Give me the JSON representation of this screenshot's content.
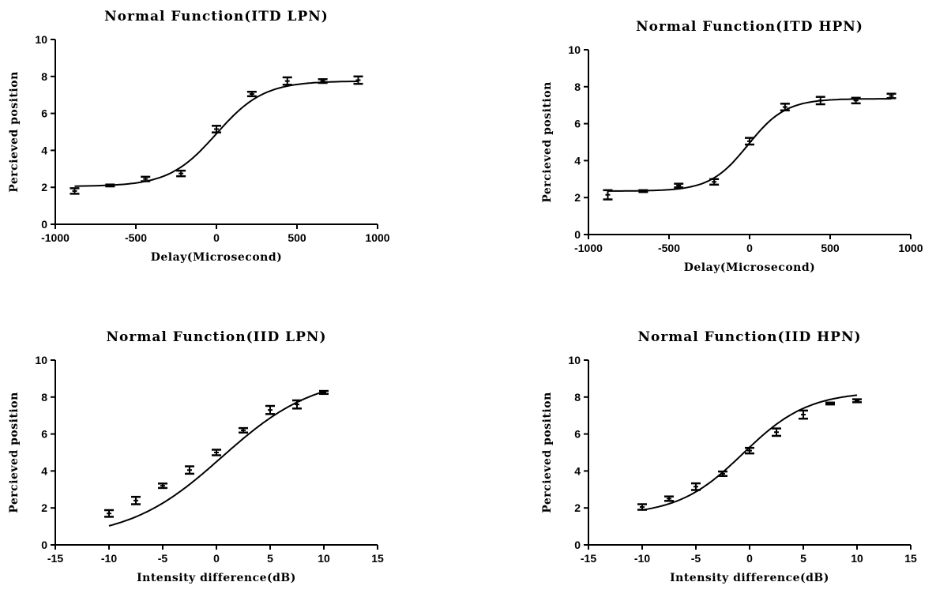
{
  "chart_data": [
    {
      "type": "scatter",
      "title": "Normal Function(ITD LPN)",
      "xlabel": "Delay(Microsecond)",
      "ylabel": "Percieved position",
      "xlim": [
        -1000,
        1000
      ],
      "ylim": [
        0,
        10
      ],
      "xticks": [
        -1000,
        -500,
        0,
        500,
        1000
      ],
      "yticks": [
        0,
        2,
        4,
        6,
        8,
        10
      ],
      "fit": {
        "bottom": 2.05,
        "top": 7.75,
        "center": 0,
        "slope": 0.0068
      },
      "x": [
        -880,
        -660,
        -440,
        -220,
        0,
        220,
        440,
        660,
        880
      ],
      "y": [
        1.8,
        2.1,
        2.45,
        2.75,
        5.15,
        7.05,
        7.75,
        7.75,
        7.8
      ],
      "err": [
        0.15,
        0.05,
        0.12,
        0.15,
        0.18,
        0.12,
        0.2,
        0.1,
        0.2
      ]
    },
    {
      "type": "scatter",
      "title": "Normal Function(ITD HPN)",
      "xlabel": "Delay(Microsecond)",
      "ylabel": "Percieved position",
      "xlim": [
        -1000,
        1000
      ],
      "ylim": [
        0,
        10
      ],
      "xticks": [
        -1000,
        -500,
        0,
        500,
        1000
      ],
      "yticks": [
        0,
        2,
        4,
        6,
        8,
        10
      ],
      "fit": {
        "bottom": 2.35,
        "top": 7.35,
        "center": -10,
        "slope": 0.0085
      },
      "x": [
        -880,
        -660,
        -440,
        -220,
        0,
        220,
        440,
        660,
        880
      ],
      "y": [
        2.15,
        2.35,
        2.65,
        2.85,
        5.05,
        6.9,
        7.25,
        7.25,
        7.5
      ],
      "err": [
        0.25,
        0.05,
        0.1,
        0.15,
        0.18,
        0.18,
        0.2,
        0.15,
        0.12
      ]
    },
    {
      "type": "scatter",
      "title": "Normal Function(IID LPN)",
      "xlabel": "Intensity difference(dB)",
      "ylabel": "Percieved position",
      "xlim": [
        -15,
        15
      ],
      "ylim": [
        0,
        10
      ],
      "xticks": [
        -15,
        -10,
        -5,
        0,
        5,
        10,
        15
      ],
      "yticks": [
        0,
        2,
        4,
        6,
        8,
        10
      ],
      "fit": {
        "bottom": 0.3,
        "top": 9.2,
        "center": 0.5,
        "slope": 0.23
      },
      "x": [
        -10,
        -7.5,
        -5,
        -2.5,
        0,
        2.5,
        5,
        7.5,
        10
      ],
      "y": [
        1.7,
        2.4,
        3.2,
        4.05,
        5.0,
        6.2,
        7.3,
        7.6,
        8.25
      ],
      "err": [
        0.18,
        0.2,
        0.12,
        0.2,
        0.15,
        0.12,
        0.22,
        0.22,
        0.08
      ]
    },
    {
      "type": "scatter",
      "title": "Normal Function(IID HPN)",
      "xlabel": "Intensity difference(dB)",
      "ylabel": "Percieved position",
      "xlim": [
        -15,
        15
      ],
      "ylim": [
        0,
        10
      ],
      "xticks": [
        -15,
        -10,
        -5,
        0,
        5,
        10,
        15
      ],
      "yticks": [
        0,
        2,
        4,
        6,
        8,
        10
      ],
      "fit": {
        "bottom": 1.6,
        "top": 8.3,
        "center": -0.6,
        "slope": 0.33
      },
      "x": [
        -10,
        -7.5,
        -5,
        -2.5,
        0,
        2.5,
        5,
        7.5,
        10
      ],
      "y": [
        2.05,
        2.5,
        3.15,
        3.85,
        5.1,
        6.1,
        7.05,
        7.65,
        7.8
      ],
      "err": [
        0.15,
        0.12,
        0.18,
        0.12,
        0.15,
        0.2,
        0.22,
        0.05,
        0.08
      ]
    }
  ]
}
